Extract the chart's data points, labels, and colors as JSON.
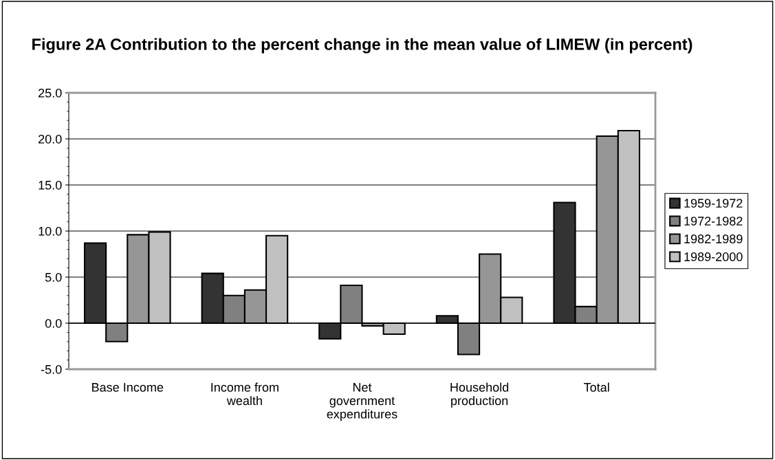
{
  "chart_data": {
    "type": "bar",
    "title": "Figure 2A Contribution to the percent change in the mean value of LIMEW (in percent)",
    "categories": [
      "Base Income",
      "Income from\nwealth",
      "Net\ngovernment\nexpenditures",
      "Household\nproduction",
      "Total"
    ],
    "series": [
      {
        "name": "1959-1972",
        "color": "#333333",
        "values": [
          8.7,
          5.4,
          -1.7,
          0.8,
          13.1
        ]
      },
      {
        "name": "1972-1982",
        "color": "#808080",
        "values": [
          -2.0,
          3.0,
          4.1,
          -3.4,
          1.8
        ]
      },
      {
        "name": "1982-1989",
        "color": "#969696",
        "values": [
          9.6,
          3.6,
          -0.3,
          7.5,
          20.3
        ]
      },
      {
        "name": "1989-2000",
        "color": "#c0c0c0",
        "values": [
          9.9,
          9.5,
          -1.2,
          2.8,
          20.9
        ]
      }
    ],
    "ylim": [
      -5,
      25
    ],
    "yticks": [
      {
        "value": -5,
        "label": "-5.0"
      },
      {
        "value": 0,
        "label": "0.0"
      },
      {
        "value": 5,
        "label": "5.0"
      },
      {
        "value": 10,
        "label": "10.0"
      },
      {
        "value": 15,
        "label": "15.0"
      },
      {
        "value": 20,
        "label": "20.0"
      },
      {
        "value": 25,
        "label": "25.0"
      }
    ],
    "grid": "y",
    "legend": "right"
  }
}
